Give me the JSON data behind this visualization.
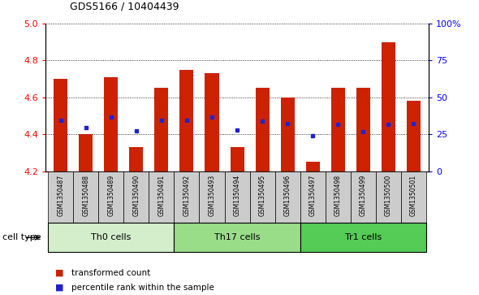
{
  "title": "GDS5166 / 10404439",
  "samples": [
    "GSM1350487",
    "GSM1350488",
    "GSM1350489",
    "GSM1350490",
    "GSM1350491",
    "GSM1350492",
    "GSM1350493",
    "GSM1350494",
    "GSM1350495",
    "GSM1350496",
    "GSM1350497",
    "GSM1350498",
    "GSM1350499",
    "GSM1350500",
    "GSM1350501"
  ],
  "transformed_count": [
    4.7,
    4.4,
    4.71,
    4.33,
    4.65,
    4.75,
    4.73,
    4.33,
    4.65,
    4.6,
    4.25,
    4.65,
    4.65,
    4.9,
    4.58
  ],
  "percentile_rank_left": [
    4.475,
    4.435,
    4.495,
    4.42,
    4.475,
    4.475,
    4.495,
    4.422,
    4.47,
    4.46,
    4.39,
    4.455,
    4.415,
    4.455,
    4.46
  ],
  "bar_bottom": 4.2,
  "ylim_left": [
    4.2,
    5.0
  ],
  "ylim_right": [
    0,
    100
  ],
  "yticks_left": [
    4.2,
    4.4,
    4.6,
    4.8,
    5.0
  ],
  "yticks_right": [
    0,
    25,
    50,
    75,
    100
  ],
  "bar_color": "#cc2200",
  "dot_color": "#2222cc",
  "cell_groups": [
    {
      "label": "Th0 cells",
      "start": 0,
      "end": 5,
      "color": "#d4eecc"
    },
    {
      "label": "Th17 cells",
      "start": 5,
      "end": 10,
      "color": "#99dd88"
    },
    {
      "label": "Tr1 cells",
      "start": 10,
      "end": 15,
      "color": "#55cc55"
    }
  ],
  "tick_bg_color": "#cccccc",
  "xlabel": "cell type",
  "legend_labels": [
    "transformed count",
    "percentile rank within the sample"
  ],
  "legend_colors": [
    "#cc2200",
    "#2222cc"
  ]
}
